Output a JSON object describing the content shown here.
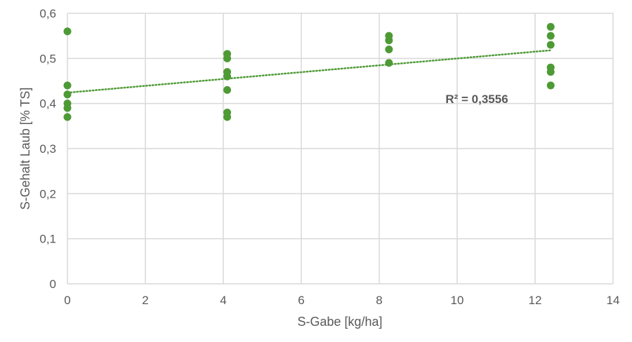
{
  "chart_data": {
    "type": "scatter",
    "xlabel": "S-Gabe [kg/ha]",
    "ylabel": "S-Gehalt Laub [% TS]",
    "xlim": [
      0,
      14
    ],
    "ylim": [
      0,
      0.6
    ],
    "x_ticks": [
      "0",
      "2",
      "4",
      "6",
      "8",
      "10",
      "12",
      "14"
    ],
    "y_ticks": [
      "0",
      "0,1",
      "0,2",
      "0,3",
      "0,4",
      "0,5",
      "0,6"
    ],
    "grid": true,
    "legend": "none",
    "series": [
      {
        "color": "#4e9a35",
        "points": [
          {
            "x": 0,
            "y": 0.56
          },
          {
            "x": 0,
            "y": 0.44
          },
          {
            "x": 0,
            "y": 0.42
          },
          {
            "x": 0,
            "y": 0.4
          },
          {
            "x": 0,
            "y": 0.39
          },
          {
            "x": 0,
            "y": 0.37
          },
          {
            "x": 4.1,
            "y": 0.51
          },
          {
            "x": 4.1,
            "y": 0.5
          },
          {
            "x": 4.1,
            "y": 0.47
          },
          {
            "x": 4.1,
            "y": 0.46
          },
          {
            "x": 4.1,
            "y": 0.43
          },
          {
            "x": 4.1,
            "y": 0.38
          },
          {
            "x": 4.1,
            "y": 0.37
          },
          {
            "x": 8.25,
            "y": 0.55
          },
          {
            "x": 8.25,
            "y": 0.54
          },
          {
            "x": 8.25,
            "y": 0.52
          },
          {
            "x": 8.25,
            "y": 0.49
          },
          {
            "x": 12.4,
            "y": 0.57
          },
          {
            "x": 12.4,
            "y": 0.55
          },
          {
            "x": 12.4,
            "y": 0.53
          },
          {
            "x": 12.4,
            "y": 0.48
          },
          {
            "x": 12.4,
            "y": 0.47
          },
          {
            "x": 12.4,
            "y": 0.44
          }
        ]
      }
    ],
    "trendline": {
      "type": "linear",
      "style": "dotted",
      "color": "#4e9a35",
      "from": {
        "x": 0,
        "y": 0.424
      },
      "to": {
        "x": 12.4,
        "y": 0.518
      },
      "label": "R² = 0,3556",
      "label_position": {
        "x": 9.7,
        "y": 0.41
      }
    },
    "colors": {
      "grid": "#d9d9d9",
      "text": "#595959"
    }
  }
}
